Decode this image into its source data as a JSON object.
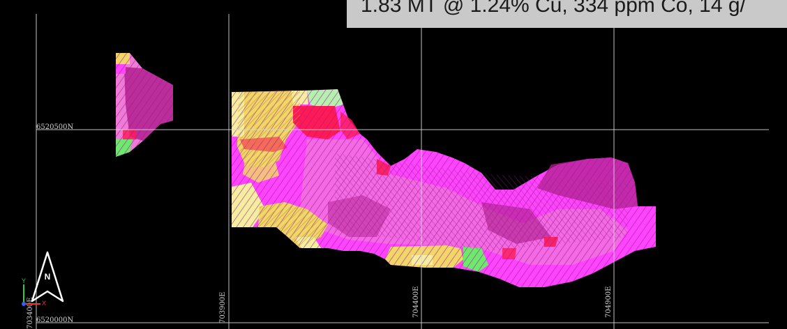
{
  "banner": {
    "text": "1.83 MT @ 1.24% Cu, 334 ppm Co, 14 g/"
  },
  "coordinates": {
    "northing_upper": "6520500N",
    "northing_lower": "6520000N",
    "easting_1": "703400E",
    "easting_2": "703900E",
    "easting_3": "704400E",
    "easting_4": "704900E"
  },
  "north_arrow": {
    "letter": "N",
    "icon": "north-arrow-icon"
  },
  "axis_triad": {
    "y_label": "Y",
    "x_label": "X",
    "y_color": "#2ecc40",
    "x_color": "#ff3030",
    "z_color": "#3060ff"
  },
  "colors": {
    "background": "#000000",
    "grid": "#d8d8d8",
    "banner_bg": "#c9c9c9",
    "grade_magenta": "#ff44ff",
    "grade_purple": "#b0208f",
    "grade_pink": "#f07ad8",
    "grade_red": "#ff1a55",
    "grade_yellow": "#f2d66a",
    "grade_cream": "#f5eea0",
    "grade_green": "#6ee86e"
  }
}
